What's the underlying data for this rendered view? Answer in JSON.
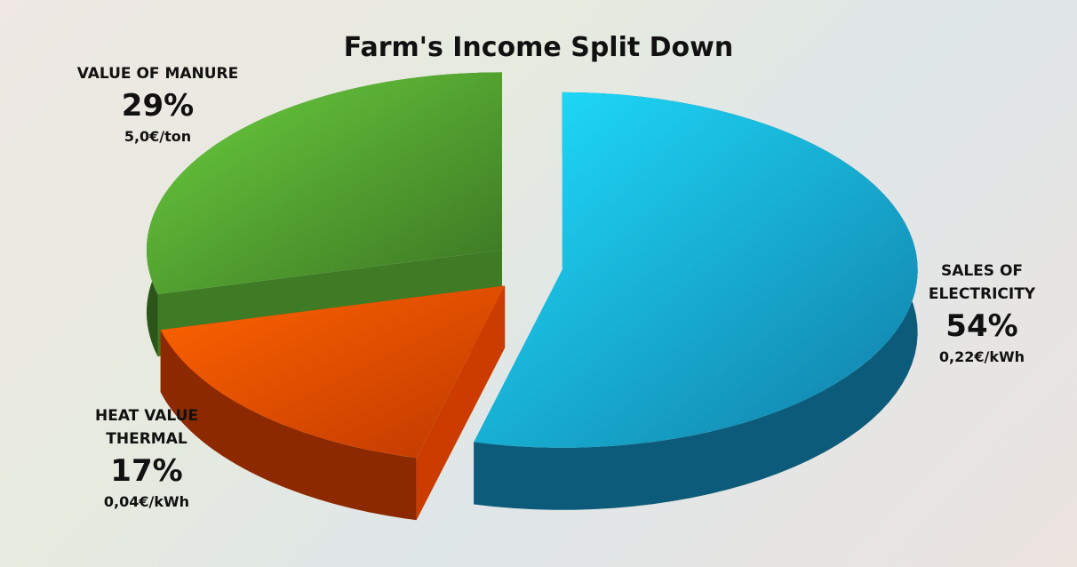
{
  "chart_data": {
    "type": "pie",
    "title": "Farm's Income Split Down",
    "categories": [
      "SALES OF ELECTRICITY",
      "HEAT VALUE THERMAL",
      "VALUE OF MANURE"
    ],
    "values": [
      54,
      17,
      29
    ],
    "value_labels": [
      "54%",
      "17%",
      "29%"
    ],
    "annotations": [
      "0,22€/kWh",
      "0,04€/kWh",
      "5,0€/ton"
    ],
    "colors": [
      "#17a6de",
      "#ff4a00",
      "#4f9a2e"
    ]
  }
}
